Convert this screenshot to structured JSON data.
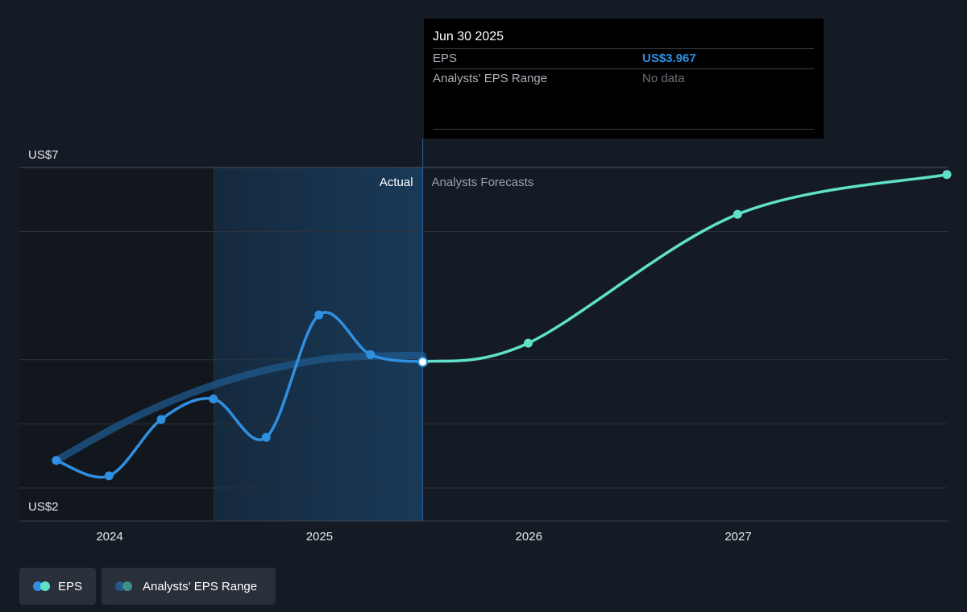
{
  "colors": {
    "background": "#151b24",
    "actual_line": "#2f8fe0",
    "forecast_line": "#5fe0c8",
    "range_band": "#1f5a8c",
    "grid": "#2c333d"
  },
  "tooltip": {
    "date": "Jun 30 2025",
    "rows": [
      {
        "label": "EPS",
        "value": "US$3.967"
      },
      {
        "label": "Analysts' EPS Range",
        "value": "No data"
      }
    ]
  },
  "legend": {
    "eps": {
      "label": "EPS",
      "icon": "eps-legend-dots-icon"
    },
    "range": {
      "label": "Analysts' EPS Range",
      "icon": "range-legend-dots-icon"
    }
  },
  "chart_data": {
    "type": "line",
    "title": "",
    "xlabel": "",
    "ylabel": "",
    "y_tick_labels": [
      "US$7",
      "US$2"
    ],
    "ylim": [
      2,
      7
    ],
    "x_tick_labels": [
      "2024",
      "2025",
      "2026",
      "2027"
    ],
    "xlim": [
      "2023-09-30",
      "2027-12-31"
    ],
    "section_labels": {
      "actual": "Actual",
      "forecast": "Analysts Forecasts"
    },
    "grid": true,
    "legend_position": "bottom-left",
    "series": [
      {
        "name": "EPS",
        "segment": "actual",
        "points": [
          {
            "x": "2023-09-30",
            "y": 2.43
          },
          {
            "x": "2023-12-31",
            "y": 2.19
          },
          {
            "x": "2024-03-31",
            "y": 3.07
          },
          {
            "x": "2024-06-30",
            "y": 3.39
          },
          {
            "x": "2024-09-30",
            "y": 2.79
          },
          {
            "x": "2024-12-31",
            "y": 4.7
          },
          {
            "x": "2025-03-31",
            "y": 4.08
          },
          {
            "x": "2025-06-30",
            "y": 3.967
          }
        ]
      },
      {
        "name": "EPS",
        "segment": "forecast",
        "points": [
          {
            "x": "2025-06-30",
            "y": 3.967
          },
          {
            "x": "2025-12-31",
            "y": 4.26
          },
          {
            "x": "2026-12-31",
            "y": 6.27
          },
          {
            "x": "2027-12-31",
            "y": 6.89
          }
        ]
      },
      {
        "name": "Analysts' EPS Range",
        "segment": "band",
        "points": [
          {
            "x": "2023-09-30",
            "y": 2.43
          },
          {
            "x": "2024-01-31",
            "y": 3.04
          },
          {
            "x": "2024-05-31",
            "y": 3.51
          },
          {
            "x": "2024-09-30",
            "y": 3.84
          },
          {
            "x": "2025-01-31",
            "y": 4.03
          },
          {
            "x": "2025-06-30",
            "y": 4.07
          }
        ]
      }
    ],
    "highlight_point": {
      "x": "2025-06-30",
      "y": 3.967
    }
  }
}
